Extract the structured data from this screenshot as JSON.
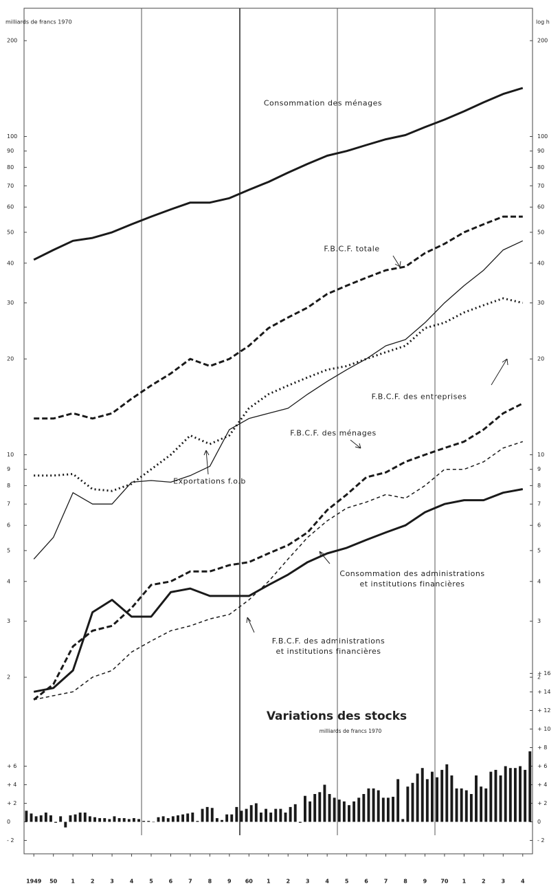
{
  "chart_data": [
    {
      "type": "line",
      "y_label": "milliards de francs 1970",
      "y2_label": "log h",
      "log_scale": true,
      "categories": [
        "1949",
        "50",
        "1",
        "2",
        "3",
        "4",
        "5",
        "6",
        "7",
        "8",
        "9",
        "60",
        "1",
        "2",
        "3",
        "4",
        "5",
        "6",
        "7",
        "8",
        "9",
        "70",
        "1",
        "2",
        "3",
        "4"
      ],
      "ylim": [
        1.6,
        220
      ],
      "yticks": [
        2,
        3,
        4,
        5,
        6,
        7,
        8,
        9,
        10,
        20,
        30,
        40,
        50,
        60,
        70,
        80,
        90,
        100,
        200
      ],
      "series": [
        {
          "name": "Consommation des ménages",
          "color": "#1a1a1a",
          "dash": "solid",
          "weight": "thick",
          "values": [
            41,
            44,
            47,
            48,
            50,
            53,
            56,
            59,
            62,
            62,
            64,
            68,
            72,
            77,
            82,
            87,
            90,
            94,
            98,
            101,
            107,
            113,
            120,
            128,
            136,
            142
          ]
        },
        {
          "name": "F.B.C.F. totale",
          "color": "#1a1a1a",
          "dash": "dashed",
          "weight": "thick",
          "values": [
            13,
            13,
            13.5,
            13,
            13.5,
            15,
            16.5,
            18,
            20,
            19,
            20,
            22,
            25,
            27,
            29,
            32,
            34,
            36,
            38,
            39,
            43,
            46,
            50,
            53,
            56,
            56
          ]
        },
        {
          "name": "F.B.C.F. des entreprises",
          "color": "#1a1a1a",
          "dash": "dotted",
          "weight": "thick",
          "values": [
            8.6,
            8.6,
            8.7,
            7.8,
            7.7,
            8.1,
            9,
            10,
            11.5,
            10.8,
            11.5,
            14,
            15.5,
            16.5,
            17.5,
            18.5,
            19,
            20,
            21,
            22,
            25,
            26,
            28,
            29.5,
            31,
            30
          ]
        },
        {
          "name": "F.B.C.F. des ménages",
          "color": "#1a1a1a",
          "dash": "dashed",
          "weight": "thick",
          "values": [
            1.7,
            1.9,
            2.5,
            2.8,
            2.9,
            3.3,
            3.9,
            4,
            4.3,
            4.3,
            4.5,
            4.6,
            4.9,
            5.2,
            5.7,
            6.7,
            7.5,
            8.5,
            8.8,
            9.5,
            10,
            10.5,
            11,
            12,
            13.5,
            14.5
          ]
        },
        {
          "name": "Exportations f.o.b",
          "color": "#1a1a1a",
          "dash": "solid",
          "weight": "thin",
          "values": [
            4.7,
            5.5,
            7.6,
            7,
            7,
            8.2,
            8.3,
            8.2,
            8.6,
            9.2,
            12,
            13,
            13.5,
            14,
            15.5,
            17,
            18.5,
            20,
            22,
            23,
            26,
            30,
            34,
            38,
            44,
            47
          ]
        },
        {
          "name": "Consommation des administrations\net institutions financières",
          "color": "#1a1a1a",
          "dash": "solid",
          "weight": "thick",
          "values": [
            1.8,
            1.85,
            2.1,
            3.2,
            3.5,
            3.1,
            3.1,
            3.7,
            3.8,
            3.6,
            3.6,
            3.6,
            3.9,
            4.2,
            4.6,
            4.9,
            5.1,
            5.4,
            5.7,
            6,
            6.6,
            7,
            7.2,
            7.2,
            7.6,
            7.8
          ]
        },
        {
          "name": "F.B.C.F. des administrations\net institutions financières",
          "color": "#1a1a1a",
          "dash": "dashed",
          "weight": "thin",
          "values": [
            1.7,
            1.75,
            1.8,
            2.0,
            2.1,
            2.4,
            2.6,
            2.8,
            2.9,
            3.05,
            3.15,
            3.5,
            4.0,
            4.7,
            5.5,
            6.2,
            6.8,
            7.1,
            7.5,
            7.3,
            8,
            9,
            9,
            9.5,
            10.5,
            11
          ]
        }
      ]
    },
    {
      "type": "bar",
      "title": "Variations des stocks",
      "subtitle": "milliards de francs 1970",
      "color": "#1a1a1a",
      "ylim": [
        -3,
        17
      ],
      "yticks": [
        {
          "value": 16,
          "label": "+ 16"
        },
        {
          "value": 14,
          "label": "+ 14"
        },
        {
          "value": 12,
          "label": "+ 12"
        },
        {
          "value": 10,
          "label": "+ 10"
        },
        {
          "value": 8,
          "label": "+ 8"
        },
        {
          "value": 6,
          "label": "+ 6"
        },
        {
          "value": 4,
          "label": "+ 4"
        },
        {
          "value": 2,
          "label": "+ 2"
        },
        0,
        {
          "value": -2,
          "label": "- 2"
        }
      ],
      "y2ticks": [
        {
          "value": 6,
          "label": "+ 6"
        },
        {
          "value": 4,
          "label": "+ 4"
        },
        {
          "value": 2,
          "label": "+ 2"
        },
        0,
        {
          "value": -2,
          "label": "- 2"
        }
      ],
      "values": [
        1.2,
        0.9,
        0.6,
        0.7,
        1.0,
        0.7,
        -0.1,
        0.6,
        -0.6,
        0.7,
        0.8,
        1.0,
        1.0,
        0.6,
        0.5,
        0.4,
        0.4,
        0.3,
        0.6,
        0.4,
        0.4,
        0.3,
        0.4,
        0.3,
        0.1,
        0.1,
        0.0,
        0.5,
        0.6,
        0.4,
        0.6,
        0.7,
        0.8,
        0.9,
        1.0,
        0.1,
        1.4,
        1.6,
        1.5,
        0.4,
        0.2,
        0.8,
        0.8,
        1.6,
        1.2,
        1.4,
        1.8,
        2.0,
        1.0,
        1.4,
        1.0,
        1.4,
        1.4,
        1.0,
        1.6,
        1.9,
        -0.1,
        2.8,
        2.2,
        3.0,
        3.2,
        4.0,
        3.0,
        2.6,
        2.4,
        2.2,
        1.8,
        2.2,
        2.6,
        3.0,
        3.6,
        3.6,
        3.4,
        2.6,
        2.6,
        2.7,
        4.6,
        0.3,
        3.8,
        4.2,
        5.2,
        5.8,
        4.6,
        5.4,
        4.8,
        5.6,
        6.2,
        5.0,
        3.6,
        3.6,
        3.4,
        3.0,
        5.0,
        3.8,
        3.6,
        5.4,
        5.6,
        5.0,
        6.0,
        5.8,
        5.8,
        6.0,
        5.6,
        7.6
      ]
    }
  ]
}
